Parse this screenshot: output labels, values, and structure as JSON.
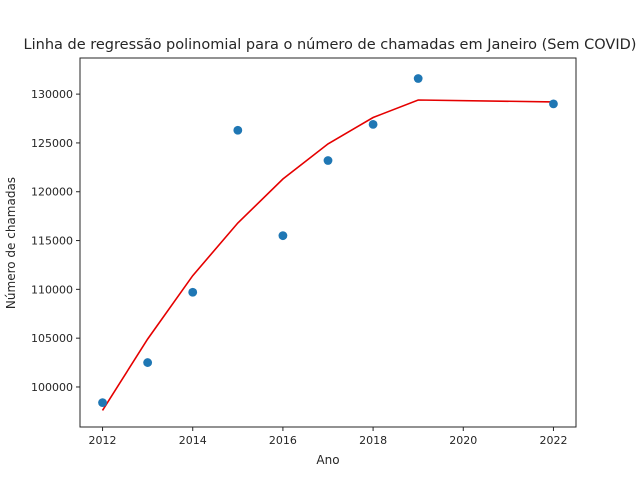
{
  "chart_data": {
    "type": "scatter",
    "title": "Linha de regressão polinomial para o número de chamadas em Janeiro (Sem COVID)",
    "xlabel": "Ano",
    "ylabel": "Número de chamadas",
    "xlim": [
      2011.5,
      2022.5
    ],
    "ylim": [
      95900,
      133700
    ],
    "xticks": [
      2012,
      2014,
      2016,
      2018,
      2020,
      2022
    ],
    "yticks": [
      100000,
      105000,
      110000,
      115000,
      120000,
      125000,
      130000
    ],
    "grid": false,
    "series": [
      {
        "kind": "scatter",
        "color": "#1f77b4",
        "x": [
          2012,
          2013,
          2014,
          2015,
          2016,
          2017,
          2018,
          2019,
          2022
        ],
        "y": [
          98400,
          102500,
          109700,
          126300,
          115500,
          123200,
          126900,
          131600,
          129000
        ]
      },
      {
        "kind": "line",
        "color": "#e50000",
        "x": [
          2012,
          2013,
          2014,
          2015,
          2016,
          2017,
          2018,
          2019,
          2022
        ],
        "y": [
          97600,
          104900,
          111400,
          116800,
          121300,
          124900,
          127600,
          129400,
          129200
        ]
      }
    ]
  }
}
